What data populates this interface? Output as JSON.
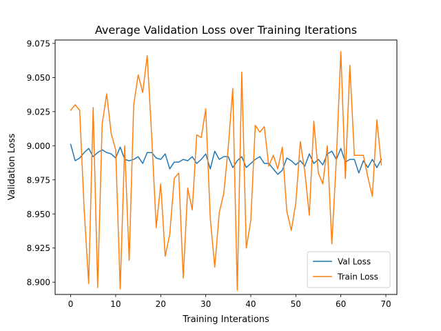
{
  "chart_data": {
    "type": "line",
    "title": "Average Validation Loss over Training Iterations",
    "xlabel": "Training Interations",
    "ylabel": "Validation Loss",
    "xlim": [
      -3.45,
      72.45
    ],
    "ylim": [
      8.891,
      9.0775
    ],
    "xticks": [
      0,
      10,
      20,
      30,
      40,
      50,
      60,
      70
    ],
    "xtick_labels": [
      "0",
      "10",
      "20",
      "30",
      "40",
      "50",
      "60",
      "70"
    ],
    "yticks": [
      8.9,
      8.925,
      8.95,
      8.975,
      9.0,
      9.025,
      9.05,
      9.075
    ],
    "ytick_labels": [
      "8.900",
      "8.925",
      "8.950",
      "8.975",
      "9.000",
      "9.025",
      "9.050",
      "9.075"
    ],
    "grid": false,
    "legend_position": "lower right",
    "x": [
      0,
      1,
      2,
      3,
      4,
      5,
      6,
      7,
      8,
      9,
      10,
      11,
      12,
      13,
      14,
      15,
      16,
      17,
      18,
      19,
      20,
      21,
      22,
      23,
      24,
      25,
      26,
      27,
      28,
      29,
      30,
      31,
      32,
      33,
      34,
      35,
      36,
      37,
      38,
      39,
      40,
      41,
      42,
      43,
      44,
      45,
      46,
      47,
      48,
      49,
      50,
      51,
      52,
      53,
      54,
      55,
      56,
      57,
      58,
      59,
      60,
      61,
      62,
      63,
      64,
      65,
      66,
      67,
      68,
      69
    ],
    "series": [
      {
        "name": "Val Loss",
        "color": "#1f77b4",
        "values": [
          9.001,
          8.989,
          8.991,
          8.995,
          8.998,
          8.992,
          8.995,
          8.997,
          8.995,
          8.994,
          8.991,
          8.999,
          8.99,
          8.989,
          8.99,
          8.992,
          8.987,
          8.995,
          8.995,
          8.991,
          8.99,
          8.994,
          8.983,
          8.988,
          8.988,
          8.99,
          8.989,
          8.992,
          8.987,
          8.99,
          8.994,
          8.983,
          8.996,
          8.99,
          8.992,
          8.992,
          8.984,
          8.989,
          8.992,
          8.984,
          8.987,
          8.99,
          8.992,
          8.987,
          8.987,
          8.983,
          8.979,
          8.982,
          8.991,
          8.989,
          8.986,
          8.989,
          8.985,
          8.994,
          8.987,
          8.99,
          8.986,
          8.994,
          8.996,
          8.99,
          8.998,
          8.988,
          8.99,
          8.99,
          8.98,
          8.989,
          8.984,
          8.99,
          8.984,
          8.99
        ]
      },
      {
        "name": "Train Loss",
        "color": "#ff7f0e",
        "values": [
          9.026,
          9.03,
          9.026,
          8.953,
          8.899,
          9.028,
          8.896,
          9.016,
          9.038,
          9.009,
          8.997,
          8.895,
          9.0,
          8.916,
          9.03,
          9.052,
          9.039,
          9.066,
          9.007,
          8.94,
          8.972,
          8.919,
          8.935,
          8.976,
          8.98,
          8.903,
          8.969,
          8.953,
          9.008,
          9.006,
          9.027,
          8.947,
          8.911,
          8.951,
          8.965,
          8.999,
          9.042,
          8.894,
          9.054,
          8.925,
          8.945,
          9.015,
          9.01,
          9.014,
          8.985,
          8.993,
          8.983,
          8.999,
          8.952,
          8.938,
          8.958,
          9.003,
          8.981,
          8.949,
          9.018,
          8.98,
          8.972,
          9.0,
          8.928,
          8.99,
          9.069,
          8.976,
          9.059,
          8.993,
          8.993,
          8.993,
          8.977,
          8.963,
          9.019,
          8.986
        ]
      }
    ]
  }
}
